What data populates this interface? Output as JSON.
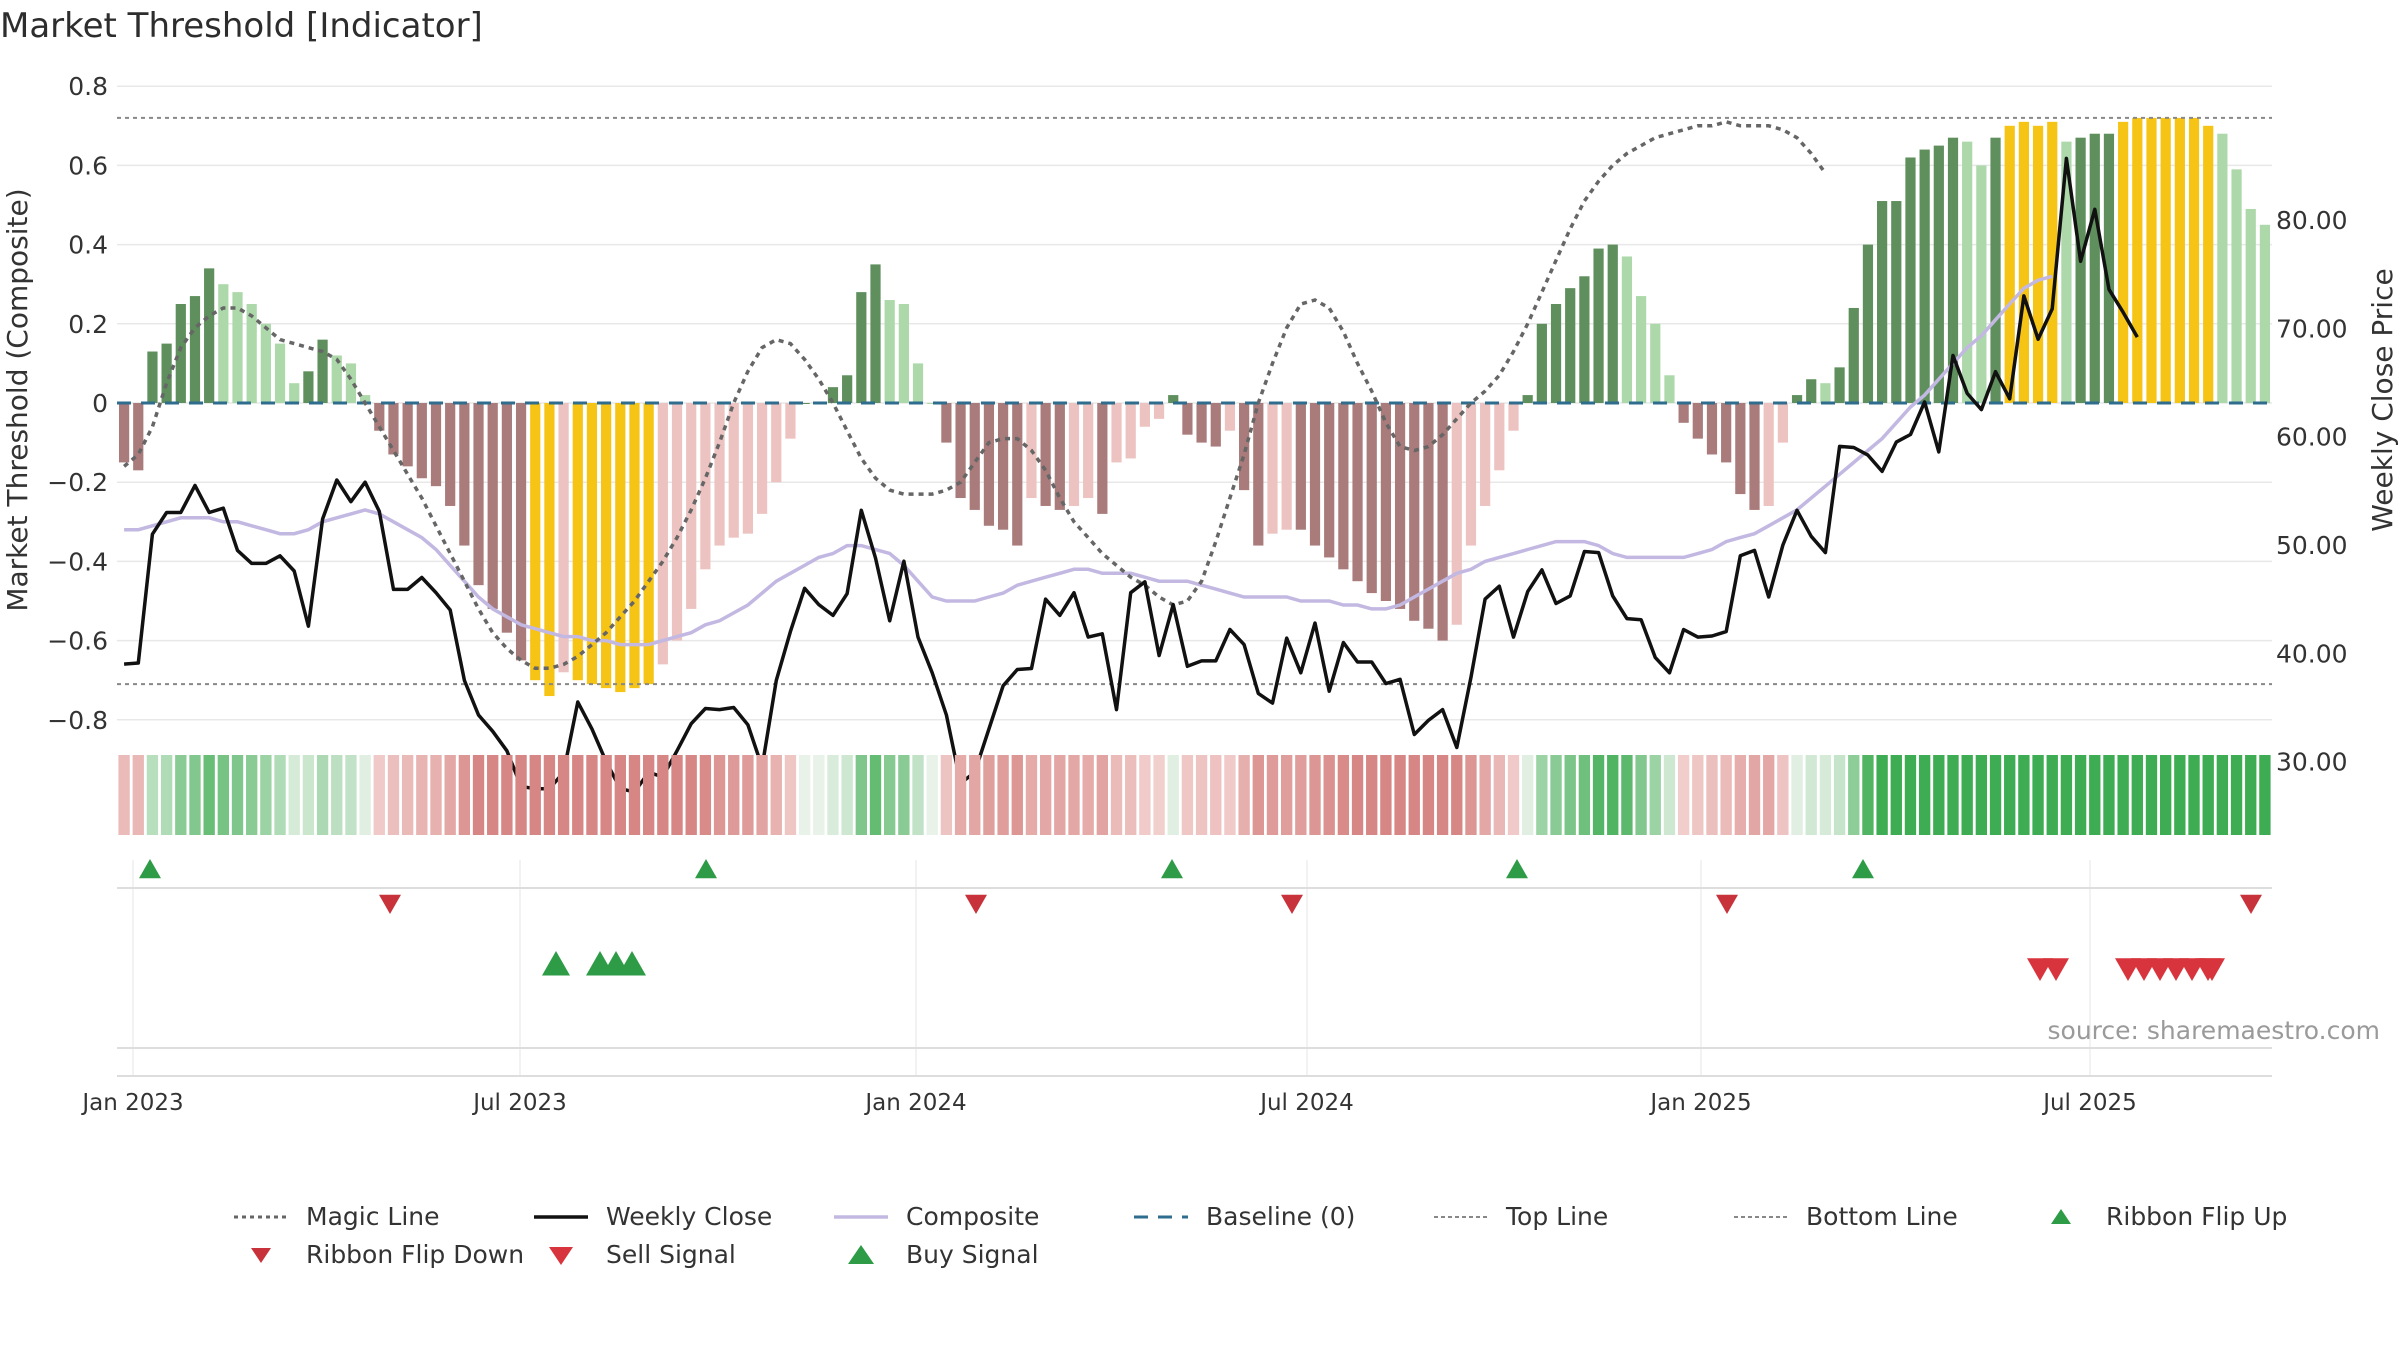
{
  "title": "Market Threshold [Indicator]",
  "source": "source: sharemaestro.com",
  "chart_data": {
    "type": "bar",
    "title": "Market Threshold [Indicator]",
    "ylabel": "Market Threshold (Composite)",
    "ylabel_right": "Weekly Close Price",
    "ylim": [
      -0.82,
      0.82
    ],
    "ylim_right": [
      27,
      90
    ],
    "yticks": [
      "0.8",
      "0.6",
      "0.4",
      "0.2",
      "0",
      "−0.2",
      "−0.4",
      "−0.6",
      "−0.8"
    ],
    "yticks_right": [
      "80.00",
      "70.00",
      "60.00",
      "50.00",
      "40.00",
      "30.00"
    ],
    "xticks": [
      "Jan 2023",
      "Jul 2023",
      "Jan 2024",
      "Jul 2024",
      "Jan 2025",
      "Jul 2025"
    ],
    "top_line": 0.72,
    "bottom_line": -0.71,
    "baseline": 0,
    "composite_bars": [
      -0.15,
      -0.17,
      0.13,
      0.15,
      0.25,
      0.27,
      0.34,
      0.3,
      0.28,
      0.25,
      0.2,
      0.15,
      0.05,
      0.08,
      0.16,
      0.12,
      0.1,
      0.02,
      -0.07,
      -0.13,
      -0.16,
      -0.19,
      -0.21,
      -0.26,
      -0.36,
      -0.46,
      -0.52,
      -0.58,
      -0.65,
      -0.7,
      -0.74,
      -0.68,
      -0.7,
      -0.71,
      -0.72,
      -0.73,
      -0.72,
      -0.71,
      -0.66,
      -0.6,
      -0.52,
      -0.42,
      -0.36,
      -0.34,
      -0.33,
      -0.28,
      -0.2,
      -0.09,
      0,
      0,
      0.04,
      0.07,
      0.28,
      0.35,
      0.26,
      0.25,
      0.1,
      0,
      -0.1,
      -0.24,
      -0.27,
      -0.31,
      -0.32,
      -0.36,
      -0.24,
      -0.26,
      -0.27,
      -0.26,
      -0.24,
      -0.28,
      -0.15,
      -0.14,
      -0.06,
      -0.04,
      0.02,
      -0.08,
      -0.1,
      -0.11,
      -0.07,
      -0.22,
      -0.36,
      -0.33,
      -0.32,
      -0.32,
      -0.36,
      -0.39,
      -0.42,
      -0.45,
      -0.48,
      -0.5,
      -0.52,
      -0.55,
      -0.57,
      -0.6,
      -0.56,
      -0.36,
      -0.26,
      -0.17,
      -0.07,
      0.02,
      0.2,
      0.25,
      0.29,
      0.32,
      0.39,
      0.4,
      0.37,
      0.27,
      0.2,
      0.07,
      -0.05,
      -0.09,
      -0.13,
      -0.15,
      -0.23,
      -0.27,
      -0.26,
      -0.1,
      0.02,
      0.06,
      0.05,
      0.09,
      0.24,
      0.4,
      0.51,
      0.51,
      0.62,
      0.64,
      0.65,
      0.67,
      0.66,
      0.6,
      0.67,
      0.7,
      0.71,
      0.7,
      0.71,
      0.66,
      0.67,
      0.68,
      0.68,
      0.71,
      0.72,
      0.72,
      0.72,
      0.72,
      0.72,
      0.7,
      0.68,
      0.59,
      0.49,
      0.45
    ],
    "weekly_close": [
      39,
      39.1,
      51,
      53,
      53,
      55.5,
      53,
      53.4,
      49.5,
      48.3,
      48.3,
      49,
      47.6,
      42.5,
      52.4,
      56,
      54,
      55.8,
      53.1,
      45.9,
      45.9,
      47,
      45.6,
      44,
      37.5,
      34.3,
      32.8,
      31,
      27.7,
      27.5,
      27.5,
      29,
      35.5,
      33,
      30,
      27.5,
      27.2,
      29,
      28.6,
      31,
      33.5,
      34.9,
      34.8,
      35,
      33.4,
      29.5,
      37.5,
      42,
      46,
      44.5,
      43.5,
      45.5,
      53.2,
      48.8,
      43,
      48.5,
      41.5,
      38.2,
      34.3,
      28,
      29,
      33,
      37,
      38.5,
      38.6,
      45,
      43.5,
      45.6,
      41.5,
      41.8,
      34.8,
      45.6,
      46.6,
      39.8,
      44.5,
      38.8,
      39.3,
      39.3,
      42.2,
      40.8,
      36.3,
      35.4,
      41.4,
      38.2,
      42.8,
      36.5,
      41,
      39.2,
      39.2,
      37.2,
      37.6,
      32.5,
      33.8,
      34.8,
      31.3,
      37.8,
      45,
      46.2,
      41.5,
      45.7,
      47.7,
      44.6,
      45.3,
      49.4,
      49.3,
      45.3,
      43.2,
      43.1,
      39.6,
      38.2,
      42.2,
      41.5,
      41.6,
      42,
      49,
      49.5,
      45.2,
      50,
      53.2,
      50.8,
      49.3,
      59.1,
      59,
      58.3,
      56.8,
      59.5,
      60.2,
      63.2,
      58.6,
      67.5,
      64,
      62.5,
      66,
      63.5,
      73,
      69,
      71.8,
      85.7,
      76.2,
      81,
      73.6,
      71.5,
      69.2
    ],
    "composite_line": [
      -0.32,
      -0.32,
      -0.31,
      -0.3,
      -0.29,
      -0.29,
      -0.29,
      -0.3,
      -0.3,
      -0.31,
      -0.32,
      -0.33,
      -0.33,
      -0.32,
      -0.3,
      -0.29,
      -0.28,
      -0.27,
      -0.28,
      -0.3,
      -0.32,
      -0.34,
      -0.37,
      -0.41,
      -0.45,
      -0.49,
      -0.52,
      -0.54,
      -0.56,
      -0.57,
      -0.58,
      -0.59,
      -0.59,
      -0.6,
      -0.6,
      -0.61,
      -0.61,
      -0.61,
      -0.6,
      -0.59,
      -0.58,
      -0.56,
      -0.55,
      -0.53,
      -0.51,
      -0.48,
      -0.45,
      -0.43,
      -0.41,
      -0.39,
      -0.38,
      -0.36,
      -0.36,
      -0.37,
      -0.38,
      -0.41,
      -0.45,
      -0.49,
      -0.5,
      -0.5,
      -0.5,
      -0.49,
      -0.48,
      -0.46,
      -0.45,
      -0.44,
      -0.43,
      -0.42,
      -0.42,
      -0.43,
      -0.43,
      -0.43,
      -0.44,
      -0.45,
      -0.45,
      -0.45,
      -0.46,
      -0.47,
      -0.48,
      -0.49,
      -0.49,
      -0.49,
      -0.49,
      -0.5,
      -0.5,
      -0.5,
      -0.51,
      -0.51,
      -0.52,
      -0.52,
      -0.51,
      -0.49,
      -0.47,
      -0.45,
      -0.43,
      -0.42,
      -0.4,
      -0.39,
      -0.38,
      -0.37,
      -0.36,
      -0.35,
      -0.35,
      -0.35,
      -0.36,
      -0.38,
      -0.39,
      -0.39,
      -0.39,
      -0.39,
      -0.39,
      -0.38,
      -0.37,
      -0.35,
      -0.34,
      -0.33,
      -0.31,
      -0.29,
      -0.27,
      -0.24,
      -0.21,
      -0.18,
      -0.15,
      -0.12,
      -0.09,
      -0.05,
      -0.01,
      0.02,
      0.06,
      0.1,
      0.14,
      0.17,
      0.21,
      0.25,
      0.29,
      0.31,
      0.32
    ],
    "magic_line": [
      -0.16,
      -0.13,
      -0.06,
      0.05,
      0.14,
      0.19,
      0.22,
      0.24,
      0.24,
      0.22,
      0.19,
      0.16,
      0.15,
      0.14,
      0.13,
      0.11,
      0.06,
      0,
      -0.06,
      -0.12,
      -0.18,
      -0.24,
      -0.31,
      -0.38,
      -0.45,
      -0.52,
      -0.58,
      -0.62,
      -0.65,
      -0.67,
      -0.67,
      -0.66,
      -0.64,
      -0.61,
      -0.58,
      -0.54,
      -0.5,
      -0.45,
      -0.4,
      -0.34,
      -0.27,
      -0.19,
      -0.1,
      0,
      0.08,
      0.14,
      0.16,
      0.15,
      0.11,
      0.06,
      0,
      -0.07,
      -0.14,
      -0.19,
      -0.22,
      -0.23,
      -0.23,
      -0.23,
      -0.22,
      -0.2,
      -0.15,
      -0.1,
      -0.09,
      -0.09,
      -0.12,
      -0.17,
      -0.24,
      -0.3,
      -0.34,
      -0.38,
      -0.41,
      -0.44,
      -0.46,
      -0.49,
      -0.51,
      -0.5,
      -0.45,
      -0.35,
      -0.24,
      -0.13,
      0,
      0.1,
      0.19,
      0.25,
      0.26,
      0.24,
      0.18,
      0.1,
      0.03,
      -0.05,
      -0.11,
      -0.12,
      -0.11,
      -0.08,
      -0.04,
      0,
      0.03,
      0.07,
      0.13,
      0.2,
      0.28,
      0.36,
      0.44,
      0.51,
      0.56,
      0.6,
      0.63,
      0.65,
      0.67,
      0.68,
      0.69,
      0.7,
      0.7,
      0.71,
      0.7,
      0.7,
      0.7,
      0.69,
      0.67,
      0.63,
      0.58
    ],
    "ribbon_flip_up": [
      "Jan 2023",
      "Oct 2023",
      "May 2024",
      "Oct 2024",
      "Mar 2025"
    ],
    "ribbon_flip_down": [
      "Apr 2023",
      "Feb 2024",
      "Jun 2024",
      "Jan 2025",
      "Sep 2025"
    ],
    "buy_signal_count": 4,
    "sell_signal_count": 9
  },
  "legend": [
    {
      "key": "magic",
      "label": "Magic Line"
    },
    {
      "key": "close",
      "label": "Weekly Close"
    },
    {
      "key": "composite",
      "label": "Composite"
    },
    {
      "key": "baseline",
      "label": "Baseline (0)"
    },
    {
      "key": "top",
      "label": "Top Line"
    },
    {
      "key": "bottom",
      "label": "Bottom Line"
    },
    {
      "key": "flipup",
      "label": "Ribbon Flip Up"
    },
    {
      "key": "flipdown",
      "label": "Ribbon Flip Down"
    },
    {
      "key": "sell",
      "label": "Sell Signal"
    },
    {
      "key": "buy",
      "label": "Buy Signal"
    }
  ],
  "colors": {
    "pos_dark": "#5e8f5c",
    "pos_light": "#acd8aa",
    "neg_dark": "#a97b7b",
    "neg_light": "#ecc3c0",
    "extreme": "#f6c414",
    "close": "#111111",
    "composite": "#c2b8e2",
    "magic": "#666666",
    "baseline": "#2e6d8e",
    "buy": "#2e9b46",
    "sell": "#d8343d"
  }
}
